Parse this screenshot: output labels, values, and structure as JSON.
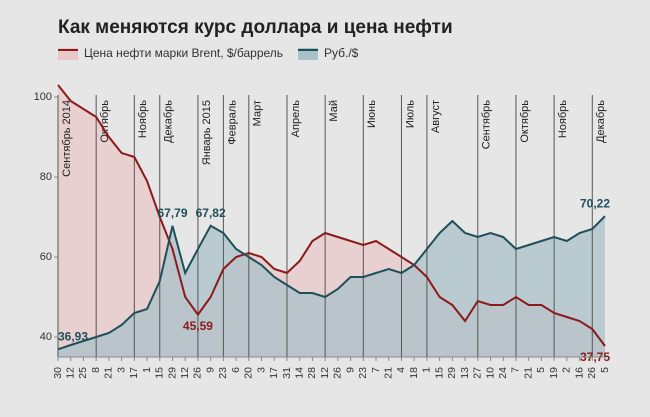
{
  "chart_data": {
    "type": "area-line",
    "title": "Как меняются курс доллара и цена нефти",
    "categories": [
      "30",
      "12",
      "25",
      "8",
      "21",
      "3",
      "17",
      "1",
      "15",
      "29",
      "12",
      "26",
      "9",
      "23",
      "6",
      "20",
      "3",
      "17",
      "31",
      "14",
      "28",
      "12",
      "26",
      "9",
      "23",
      "7",
      "21",
      "4",
      "18",
      "1",
      "15",
      "29",
      "13",
      "27",
      "10",
      "24",
      "7",
      "21",
      "5",
      "19",
      "2",
      "16",
      "26",
      "5"
    ],
    "month_labels": [
      "Сентябрь 2014",
      null,
      null,
      "Октябрь",
      null,
      null,
      "Ноябрь",
      null,
      "Декабрь",
      null,
      null,
      "Январь 2015",
      null,
      "Февраль",
      null,
      "Март",
      null,
      null,
      "Апрель",
      null,
      null,
      "Май",
      null,
      null,
      "Июнь",
      null,
      null,
      "Июль",
      null,
      "Август",
      null,
      null,
      null,
      "Сентябрь",
      null,
      null,
      "Октябрь",
      null,
      null,
      "Ноябрь",
      null,
      null,
      "Декабрь",
      null
    ],
    "series": [
      {
        "name": "Цена нефти марки Brent, $/баррель",
        "color": "#8b1a1a",
        "fill": "#e8c8c8",
        "values": [
          103,
          99,
          97,
          95,
          90,
          86,
          85,
          79,
          70,
          62,
          50,
          45.59,
          50,
          57,
          60,
          61,
          60,
          57,
          56,
          59,
          64,
          66,
          65,
          64,
          63,
          64,
          62,
          60,
          58,
          55,
          50,
          48,
          44,
          49,
          48,
          48,
          50,
          48,
          48,
          46,
          45,
          44,
          42,
          37.75
        ],
        "value_labels": [
          null,
          null,
          null,
          null,
          null,
          null,
          null,
          null,
          null,
          null,
          null,
          "45,59",
          null,
          null,
          null,
          null,
          null,
          null,
          null,
          null,
          null,
          null,
          null,
          null,
          null,
          null,
          null,
          null,
          null,
          null,
          null,
          null,
          null,
          null,
          null,
          null,
          null,
          null,
          null,
          null,
          null,
          null,
          null,
          "37,75"
        ]
      },
      {
        "name": "Руб./$",
        "color": "#1f4f5a",
        "fill": "#a9c2c8",
        "values": [
          36.93,
          38,
          39,
          40,
          41,
          43,
          46,
          47,
          54,
          67.79,
          56,
          62,
          67.82,
          66,
          62,
          60,
          58,
          55,
          53,
          51,
          51,
          50,
          52,
          55,
          55,
          56,
          57,
          56,
          58,
          62,
          66,
          69,
          66,
          65,
          66,
          65,
          62,
          63,
          64,
          65,
          64,
          66,
          67,
          70.22
        ],
        "value_labels": [
          "36,93",
          null,
          null,
          null,
          null,
          null,
          null,
          null,
          null,
          "67,79",
          null,
          null,
          "67,82",
          null,
          null,
          null,
          null,
          null,
          null,
          null,
          null,
          null,
          null,
          null,
          null,
          null,
          null,
          null,
          null,
          null,
          null,
          null,
          null,
          null,
          null,
          null,
          null,
          null,
          null,
          null,
          null,
          null,
          null,
          "70,22"
        ]
      }
    ],
    "ylim": [
      35,
      103
    ],
    "yticks": [
      40,
      60,
      80,
      100
    ]
  }
}
